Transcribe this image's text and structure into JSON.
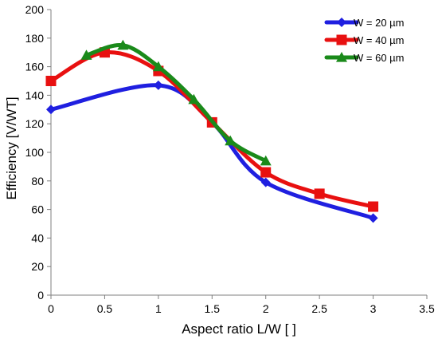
{
  "chart_data": {
    "type": "line",
    "xlabel": "Aspect ratio L/W [ ]",
    "ylabel": "Efficiency [V/WT]",
    "xlim": [
      0,
      3.5
    ],
    "ylim": [
      0,
      200
    ],
    "xticks": [
      0,
      0.5,
      1,
      1.5,
      2,
      2.5,
      3,
      3.5
    ],
    "yticks": [
      0,
      20,
      40,
      60,
      80,
      100,
      120,
      140,
      160,
      180,
      200
    ],
    "grid": false,
    "legend_position": "top-right",
    "series": [
      {
        "name": "W = 20 µm",
        "color": "#1f1fe0",
        "marker": "diamond",
        "x": [
          0,
          1,
          1.5,
          2,
          3
        ],
        "y": [
          130,
          147,
          121,
          79,
          54
        ]
      },
      {
        "name": "W = 40 µm",
        "color": "#e81010",
        "marker": "square",
        "x": [
          0,
          0.5,
          1,
          1.5,
          2,
          2.5,
          3
        ],
        "y": [
          150,
          170,
          157,
          121,
          86,
          71,
          62
        ]
      },
      {
        "name": "W = 60 µm",
        "color": "#1a8a1a",
        "marker": "triangle",
        "x": [
          0.33,
          0.67,
          1,
          1.33,
          1.67,
          2
        ],
        "y": [
          168,
          175,
          160,
          137,
          108,
          94
        ]
      }
    ]
  }
}
